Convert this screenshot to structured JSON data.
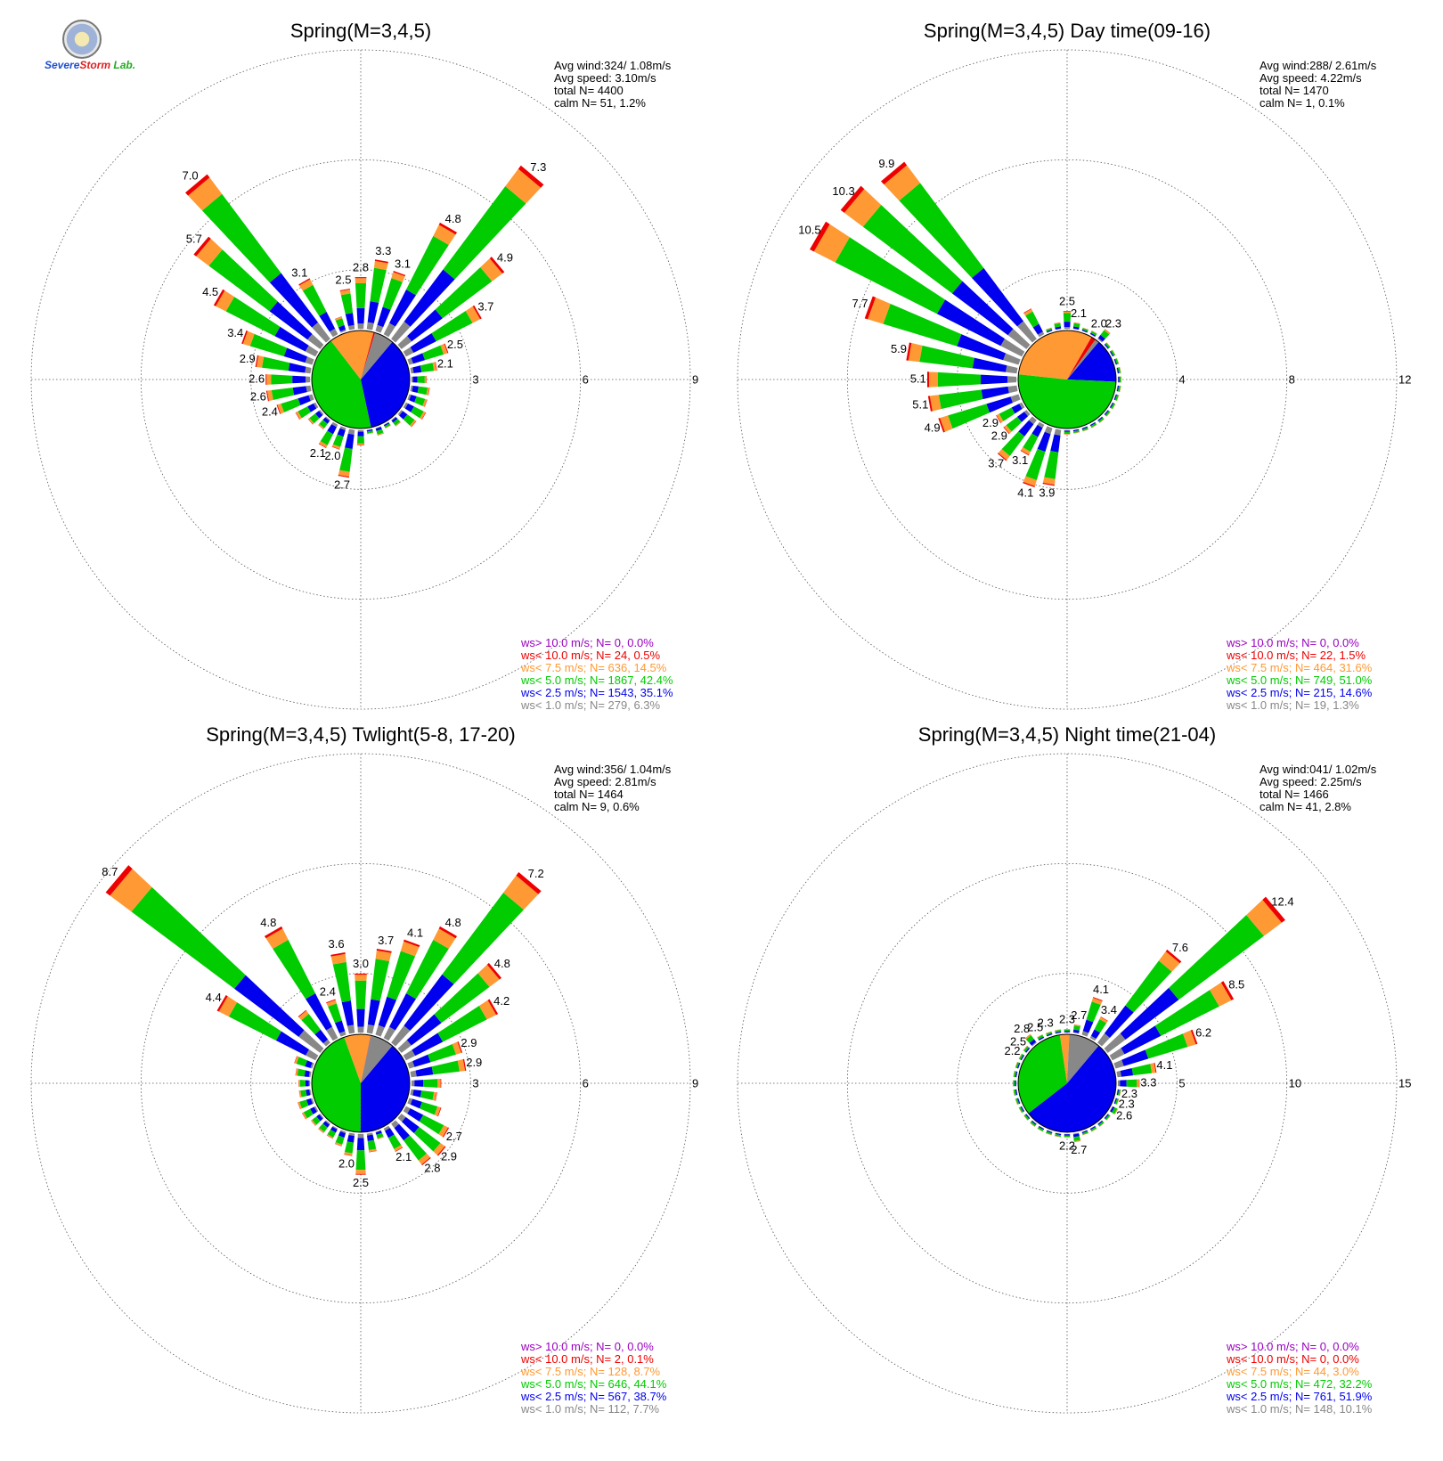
{
  "logo": {
    "text_severe": "Severe",
    "text_storm": "Storm",
    "text_lab": "Lab."
  },
  "colors": {
    "gt10": "#9a00c0",
    "lt10": "#ee0000",
    "lt7_5": "#ff9933",
    "lt5": "#00cc00",
    "lt2_5": "#0000ee",
    "lt1": "#888888",
    "grid": "#555555"
  },
  "chart_data": [
    {
      "type": "wind-rose",
      "title": "Spring(M=3,4,5)",
      "rticks": [
        "3",
        "6",
        "9"
      ],
      "rmax": 9,
      "stats": [
        "Avg wind:324/ 1.08m/s",
        "Avg speed: 3.10m/s",
        "total N=      4400",
        "calm N=     51,   1.2%"
      ],
      "legend": [
        {
          "label": "ws> 10.0 m/s; N=     0,  0.0%",
          "color": "#9a00c0"
        },
        {
          "label": "ws< 10.0 m/s; N=    24,  0.5%",
          "color": "#ee0000"
        },
        {
          "label": "ws<  7.5 m/s; N=   636, 14.5%",
          "color": "#ff9933"
        },
        {
          "label": "ws<  5.0 m/s; N=  1867, 42.4%",
          "color": "#00cc00"
        },
        {
          "label": "ws<  2.5 m/s; N=  1543, 35.1%",
          "color": "#0000ee"
        },
        {
          "label": "ws<  1.0 m/s; N=   279,  6.3%",
          "color": "#888888"
        }
      ],
      "pie": [
        0.063,
        0.351,
        0.424,
        0.145,
        0.005,
        0.0
      ],
      "bins": [
        {
          "dir": 0,
          "total": 2.8,
          "label": "2.8"
        },
        {
          "dir": 10,
          "total": 3.3,
          "label": "3.3"
        },
        {
          "dir": 20,
          "total": 3.1,
          "label": "3.1"
        },
        {
          "dir": 30,
          "total": 4.8,
          "label": "4.8"
        },
        {
          "dir": 40,
          "total": 7.3,
          "label": "7.3"
        },
        {
          "dir": 50,
          "total": 4.9,
          "label": "4.9"
        },
        {
          "dir": 60,
          "total": 3.7,
          "label": "3.7"
        },
        {
          "dir": 70,
          "total": 2.5,
          "label": "2.5"
        },
        {
          "dir": 80,
          "total": 2.1,
          "label": "2.1"
        },
        {
          "dir": 90,
          "total": 1.8
        },
        {
          "dir": 100,
          "total": 1.9
        },
        {
          "dir": 110,
          "total": 1.9
        },
        {
          "dir": 120,
          "total": 2.0
        },
        {
          "dir": 130,
          "total": 1.9
        },
        {
          "dir": 140,
          "total": 1.6
        },
        {
          "dir": 150,
          "total": 1.5
        },
        {
          "dir": 160,
          "total": 1.6
        },
        {
          "dir": 170,
          "total": 1.5
        },
        {
          "dir": 180,
          "total": 1.8
        },
        {
          "dir": 190,
          "total": 2.7,
          "label": "2.7"
        },
        {
          "dir": 200,
          "total": 2.0,
          "label": "2.0"
        },
        {
          "dir": 210,
          "total": 2.1,
          "label": "2.1"
        },
        {
          "dir": 220,
          "total": 1.7
        },
        {
          "dir": 230,
          "total": 1.8
        },
        {
          "dir": 240,
          "total": 2.0
        },
        {
          "dir": 250,
          "total": 2.4,
          "label": "2.4"
        },
        {
          "dir": 260,
          "total": 2.6,
          "label": "2.6"
        },
        {
          "dir": 270,
          "total": 2.6,
          "label": "2.6"
        },
        {
          "dir": 280,
          "total": 2.9,
          "label": "2.9"
        },
        {
          "dir": 290,
          "total": 3.4,
          "label": "3.4"
        },
        {
          "dir": 300,
          "total": 4.5,
          "label": "4.5"
        },
        {
          "dir": 310,
          "total": 5.7,
          "label": "5.7"
        },
        {
          "dir": 320,
          "total": 7.0,
          "label": "7.0"
        },
        {
          "dir": 330,
          "total": 3.1,
          "label": "3.1"
        },
        {
          "dir": 340,
          "total": 1.8
        },
        {
          "dir": 350,
          "total": 2.5,
          "label": "2.5"
        }
      ]
    },
    {
      "type": "wind-rose",
      "title": "Spring(M=3,4,5) Day time(09-16)",
      "rticks": [
        "4",
        "8",
        "12"
      ],
      "rmax": 12,
      "stats": [
        "Avg wind:288/ 2.61m/s",
        "Avg speed: 4.22m/s",
        "total N=      1470",
        "calm N=      1,   0.1%"
      ],
      "legend": [
        {
          "label": "ws> 10.0 m/s; N=     0,  0.0%",
          "color": "#9a00c0"
        },
        {
          "label": "ws< 10.0 m/s; N=    22,  1.5%",
          "color": "#ee0000"
        },
        {
          "label": "ws<  7.5 m/s; N=   464, 31.6%",
          "color": "#ff9933"
        },
        {
          "label": "ws<  5.0 m/s; N=   749, 51.0%",
          "color": "#00cc00"
        },
        {
          "label": "ws<  2.5 m/s; N=   215, 14.6%",
          "color": "#0000ee"
        },
        {
          "label": "ws<  1.0 m/s; N=    19,  1.3%",
          "color": "#888888"
        }
      ],
      "pie": [
        0.013,
        0.146,
        0.51,
        0.316,
        0.015,
        0.0
      ],
      "bins": [
        {
          "dir": 0,
          "total": 2.5,
          "label": "2.5"
        },
        {
          "dir": 10,
          "total": 2.1,
          "label": "2.1"
        },
        {
          "dir": 20,
          "total": 1.8
        },
        {
          "dir": 30,
          "total": 2.0,
          "label": "2.0"
        },
        {
          "dir": 40,
          "total": 2.3,
          "label": "2.3"
        },
        {
          "dir": 50,
          "total": 1.4
        },
        {
          "dir": 60,
          "total": 1.0
        },
        {
          "dir": 70,
          "total": 0.8
        },
        {
          "dir": 80,
          "total": 0.6
        },
        {
          "dir": 90,
          "total": 0.4
        },
        {
          "dir": 100,
          "total": 0.5
        },
        {
          "dir": 110,
          "total": 0.6
        },
        {
          "dir": 120,
          "total": 0.5
        },
        {
          "dir": 130,
          "total": 0.5
        },
        {
          "dir": 140,
          "total": 0.6
        },
        {
          "dir": 150,
          "total": 0.5
        },
        {
          "dir": 160,
          "total": 0.7
        },
        {
          "dir": 170,
          "total": 1.3
        },
        {
          "dir": 180,
          "total": 2.0
        },
        {
          "dir": 190,
          "total": 3.9,
          "label": "3.9"
        },
        {
          "dir": 200,
          "total": 4.1,
          "label": "4.1"
        },
        {
          "dir": 210,
          "total": 3.1,
          "label": "3.1"
        },
        {
          "dir": 220,
          "total": 3.7,
          "label": "3.7"
        },
        {
          "dir": 230,
          "total": 2.9,
          "label": "2.9"
        },
        {
          "dir": 240,
          "total": 2.9,
          "label": "2.9"
        },
        {
          "dir": 250,
          "total": 4.9,
          "label": "4.9"
        },
        {
          "dir": 260,
          "total": 5.1,
          "label": "5.1"
        },
        {
          "dir": 270,
          "total": 5.1,
          "label": "5.1"
        },
        {
          "dir": 280,
          "total": 5.9,
          "label": "5.9"
        },
        {
          "dir": 290,
          "total": 7.7,
          "label": "7.7"
        },
        {
          "dir": 300,
          "total": 10.5,
          "label": "10.5"
        },
        {
          "dir": 310,
          "total": 10.3,
          "label": "10.3"
        },
        {
          "dir": 320,
          "total": 9.9,
          "label": "9.9"
        },
        {
          "dir": 330,
          "total": 2.9
        },
        {
          "dir": 340,
          "total": 1.5
        },
        {
          "dir": 350,
          "total": 2.1
        }
      ]
    },
    {
      "type": "wind-rose",
      "title": "Spring(M=3,4,5) Twlight(5-8, 17-20)",
      "rticks": [
        "3",
        "6",
        "9"
      ],
      "rmax": 9,
      "stats": [
        "Avg wind:356/ 1.04m/s",
        "Avg speed: 2.81m/s",
        "total N=      1464",
        "calm N=      9,   0.6%"
      ],
      "legend": [
        {
          "label": "ws> 10.0 m/s; N=     0,  0.0%",
          "color": "#9a00c0"
        },
        {
          "label": "ws< 10.0 m/s; N=     2,  0.1%",
          "color": "#ee0000"
        },
        {
          "label": "ws<  7.5 m/s; N=   128,  8.7%",
          "color": "#ff9933"
        },
        {
          "label": "ws<  5.0 m/s; N=   646, 44.1%",
          "color": "#00cc00"
        },
        {
          "label": "ws<  2.5 m/s; N=   567, 38.7%",
          "color": "#0000ee"
        },
        {
          "label": "ws<  1.0 m/s; N=   112,  7.7%",
          "color": "#888888"
        }
      ],
      "pie": [
        0.077,
        0.387,
        0.441,
        0.087,
        0.001,
        0.0
      ],
      "bins": [
        {
          "dir": 0,
          "total": 3.0,
          "label": "3.0"
        },
        {
          "dir": 10,
          "total": 3.7,
          "label": "3.7"
        },
        {
          "dir": 20,
          "total": 4.1,
          "label": "4.1"
        },
        {
          "dir": 30,
          "total": 4.8,
          "label": "4.8"
        },
        {
          "dir": 40,
          "total": 7.2,
          "label": "7.2"
        },
        {
          "dir": 50,
          "total": 4.8,
          "label": "4.8"
        },
        {
          "dir": 60,
          "total": 4.2,
          "label": "4.2"
        },
        {
          "dir": 70,
          "total": 2.9,
          "label": "2.9"
        },
        {
          "dir": 80,
          "total": 2.9,
          "label": "2.9"
        },
        {
          "dir": 90,
          "total": 2.2
        },
        {
          "dir": 100,
          "total": 2.1
        },
        {
          "dir": 110,
          "total": 2.3
        },
        {
          "dir": 120,
          "total": 2.7,
          "label": "2.7"
        },
        {
          "dir": 130,
          "total": 2.9,
          "label": "2.9"
        },
        {
          "dir": 140,
          "total": 2.8,
          "label": "2.8"
        },
        {
          "dir": 150,
          "total": 2.1,
          "label": "2.1"
        },
        {
          "dir": 160,
          "total": 1.6
        },
        {
          "dir": 170,
          "total": 1.9
        },
        {
          "dir": 180,
          "total": 2.5,
          "label": "2.5"
        },
        {
          "dir": 190,
          "total": 2.0,
          "label": "2.0"
        },
        {
          "dir": 200,
          "total": 1.8
        },
        {
          "dir": 210,
          "total": 1.7
        },
        {
          "dir": 220,
          "total": 1.7
        },
        {
          "dir": 230,
          "total": 1.7
        },
        {
          "dir": 240,
          "total": 1.8
        },
        {
          "dir": 250,
          "total": 1.8
        },
        {
          "dir": 260,
          "total": 1.7
        },
        {
          "dir": 270,
          "total": 1.7
        },
        {
          "dir": 280,
          "total": 1.8
        },
        {
          "dir": 290,
          "total": 1.9
        },
        {
          "dir": 300,
          "total": 4.4,
          "label": "4.4"
        },
        {
          "dir": 310,
          "total": 8.7,
          "label": "8.7"
        },
        {
          "dir": 320,
          "total": 2.5
        },
        {
          "dir": 330,
          "total": 4.8,
          "label": "4.8"
        },
        {
          "dir": 340,
          "total": 2.4,
          "label": "2.4"
        },
        {
          "dir": 350,
          "total": 3.6,
          "label": "3.6"
        }
      ]
    },
    {
      "type": "wind-rose",
      "title": "Spring(M=3,4,5) Night time(21-04)",
      "rticks": [
        "5",
        "10",
        "15"
      ],
      "rmax": 15,
      "stats": [
        "Avg wind:041/ 1.02m/s",
        "Avg speed: 2.25m/s",
        "total N=      1466",
        "calm N=     41,   2.8%"
      ],
      "legend": [
        {
          "label": "ws> 10.0 m/s; N=     0,  0.0%",
          "color": "#9a00c0"
        },
        {
          "label": "ws< 10.0 m/s; N=     0,  0.0%",
          "color": "#ee0000"
        },
        {
          "label": "ws<  7.5 m/s; N=    44,  3.0%",
          "color": "#ff9933"
        },
        {
          "label": "ws<  5.0 m/s; N=   472, 32.2%",
          "color": "#00cc00"
        },
        {
          "label": "ws<  2.5 m/s; N=   761, 51.9%",
          "color": "#0000ee"
        },
        {
          "label": "ws<  1.0 m/s; N=   148, 10.1%",
          "color": "#888888"
        }
      ],
      "pie": [
        0.101,
        0.519,
        0.322,
        0.03,
        0.0,
        0.0
      ],
      "bins": [
        {
          "dir": 0,
          "total": 2.3,
          "label": "2.3"
        },
        {
          "dir": 10,
          "total": 2.7,
          "label": "2.7"
        },
        {
          "dir": 20,
          "total": 4.1,
          "label": "4.1"
        },
        {
          "dir": 30,
          "total": 3.4,
          "label": "3.4"
        },
        {
          "dir": 40,
          "total": 7.6,
          "label": "7.6"
        },
        {
          "dir": 50,
          "total": 12.4,
          "label": "12.4"
        },
        {
          "dir": 60,
          "total": 8.5,
          "label": "8.5"
        },
        {
          "dir": 70,
          "total": 6.2,
          "label": "6.2"
        },
        {
          "dir": 80,
          "total": 4.1,
          "label": "4.1"
        },
        {
          "dir": 90,
          "total": 3.3,
          "label": "3.3"
        },
        {
          "dir": 100,
          "total": 2.3,
          "label": "2.3"
        },
        {
          "dir": 110,
          "total": 2.3,
          "label": "2.3"
        },
        {
          "dir": 120,
          "total": 2.6,
          "label": "2.6"
        },
        {
          "dir": 130,
          "total": 1.9
        },
        {
          "dir": 140,
          "total": 1.7
        },
        {
          "dir": 150,
          "total": 1.7
        },
        {
          "dir": 160,
          "total": 2.0
        },
        {
          "dir": 170,
          "total": 2.7,
          "label": "2.7"
        },
        {
          "dir": 180,
          "total": 2.2,
          "label": "2.2"
        },
        {
          "dir": 190,
          "total": 1.8
        },
        {
          "dir": 200,
          "total": 1.6
        },
        {
          "dir": 210,
          "total": 1.5
        },
        {
          "dir": 220,
          "total": 1.5
        },
        {
          "dir": 230,
          "total": 1.5
        },
        {
          "dir": 240,
          "total": 1.4
        },
        {
          "dir": 250,
          "total": 1.4
        },
        {
          "dir": 260,
          "total": 1.4
        },
        {
          "dir": 270,
          "total": 1.4
        },
        {
          "dir": 280,
          "total": 1.5
        },
        {
          "dir": 290,
          "total": 1.6
        },
        {
          "dir": 300,
          "total": 2.2,
          "label": "2.2"
        },
        {
          "dir": 310,
          "total": 2.5,
          "label": "2.5"
        },
        {
          "dir": 320,
          "total": 2.8,
          "label": "2.8"
        },
        {
          "dir": 330,
          "total": 2.5,
          "label": "2.5"
        },
        {
          "dir": 340,
          "total": 2.3,
          "label": "2.3"
        },
        {
          "dir": 350,
          "total": 2.2
        }
      ]
    }
  ]
}
